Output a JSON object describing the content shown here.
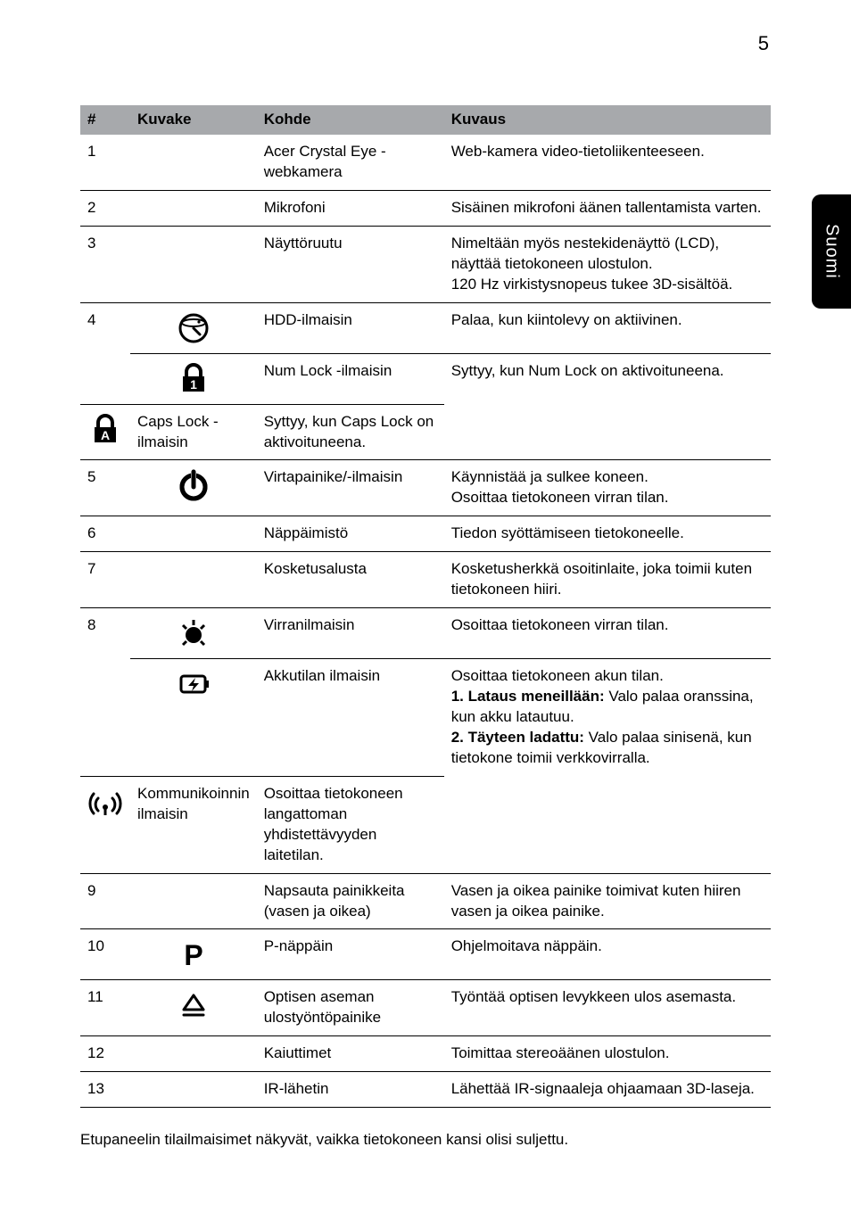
{
  "page_number": "5",
  "side_tab": "Suomi",
  "colors": {
    "header_bg": "#a7a9ac",
    "text": "#000000",
    "bg": "#ffffff",
    "tab_bg": "#000000",
    "tab_text": "#ffffff",
    "rule": "#000000"
  },
  "fonts": {
    "body_size_pt": 13,
    "page_num_size_pt": 16
  },
  "table": {
    "headers": {
      "num": "#",
      "icon": "Kuvake",
      "kohde": "Kohde",
      "kuvaus": "Kuvaus"
    },
    "groups": [
      {
        "num": "1",
        "rows": [
          {
            "icon": null,
            "kohde": "Acer Crystal Eye -webkamera",
            "kuvaus": "Web-kamera video-tietoliikenteeseen."
          }
        ]
      },
      {
        "num": "2",
        "rows": [
          {
            "icon": null,
            "kohde": "Mikrofoni",
            "kuvaus": "Sisäinen mikrofoni äänen tallentamista varten."
          }
        ]
      },
      {
        "num": "3",
        "rows": [
          {
            "icon": null,
            "kohde": "Näyttöruutu",
            "kuvaus": "Nimeltään myös nestekidenäyttö (LCD), näyttää tietokoneen ulostulon.\n120 Hz virkistysnopeus tukee 3D-sisältöä."
          }
        ]
      },
      {
        "num": "4",
        "rows": [
          {
            "icon": "hdd",
            "kohde": "HDD-ilmaisin",
            "kuvaus": "Palaa, kun kiintolevy on aktiivinen."
          },
          {
            "icon": "numlock",
            "kohde": "Num Lock -ilmaisin",
            "kuvaus": "Syttyy, kun Num Lock on aktivoituneena."
          },
          {
            "icon": "capslock",
            "kohde": "Caps Lock -ilmaisin",
            "kuvaus": "Syttyy, kun Caps Lock on aktivoituneena."
          }
        ]
      },
      {
        "num": "5",
        "rows": [
          {
            "icon": "power",
            "kohde": "Virtapainike/-ilmaisin",
            "kuvaus": "Käynnistää ja sulkee koneen.\nOsoittaa tietokoneen virran tilan."
          }
        ]
      },
      {
        "num": "6",
        "rows": [
          {
            "icon": null,
            "kohde": "Näppäimistö",
            "kuvaus": "Tiedon syöttämiseen tietokoneelle."
          }
        ]
      },
      {
        "num": "7",
        "rows": [
          {
            "icon": null,
            "kohde": "Kosketusalusta",
            "kuvaus": "Kosketusherkkä osoitinlaite, joka toimii kuten tietokoneen hiiri."
          }
        ]
      },
      {
        "num": "8",
        "rows": [
          {
            "icon": "powerind",
            "kohde": "Virranilmaisin",
            "kuvaus": "Osoittaa tietokoneen virran tilan."
          },
          {
            "icon": "battery",
            "kohde": "Akkutilan ilmaisin",
            "kuvaus_parts": [
              {
                "text": "Osoittaa tietokoneen akun tilan."
              },
              {
                "bold": "1. Lataus meneillään:",
                "text": " Valo palaa oranssina, kun akku latautuu."
              },
              {
                "bold": "2. Täyteen ladattu:",
                "text": " Valo palaa sinisenä, kun tietokone toimii verkkovirralla."
              }
            ]
          },
          {
            "icon": "wireless",
            "kohde": "Kommunikoinnin ilmaisin",
            "kuvaus": "Osoittaa tietokoneen langattoman yhdistettävyyden laitetilan."
          }
        ]
      },
      {
        "num": "9",
        "rows": [
          {
            "icon": null,
            "kohde": "Napsauta painikkeita (vasen ja oikea)",
            "kuvaus": "Vasen ja oikea painike toimivat kuten hiiren vasen ja oikea painike."
          }
        ]
      },
      {
        "num": "10",
        "rows": [
          {
            "icon": "pkey",
            "kohde": "P-näppäin",
            "kuvaus": "Ohjelmoitava näppäin."
          }
        ]
      },
      {
        "num": "11",
        "rows": [
          {
            "icon": "eject",
            "kohde": "Optisen aseman ulostyöntöpainike",
            "kuvaus": "Työntää optisen levykkeen ulos asemasta."
          }
        ]
      },
      {
        "num": "12",
        "rows": [
          {
            "icon": null,
            "kohde": "Kaiuttimet",
            "kuvaus": "Toimittaa stereoäänen ulostulon."
          }
        ]
      },
      {
        "num": "13",
        "rows": [
          {
            "icon": null,
            "kohde": "IR-lähetin",
            "kuvaus": "Lähettää IR-signaaleja ohjaamaan 3D-laseja."
          }
        ]
      }
    ]
  },
  "footnote": "Etupaneelin tilailmaisimet näkyvät, vaikka tietokoneen kansi olisi suljettu."
}
